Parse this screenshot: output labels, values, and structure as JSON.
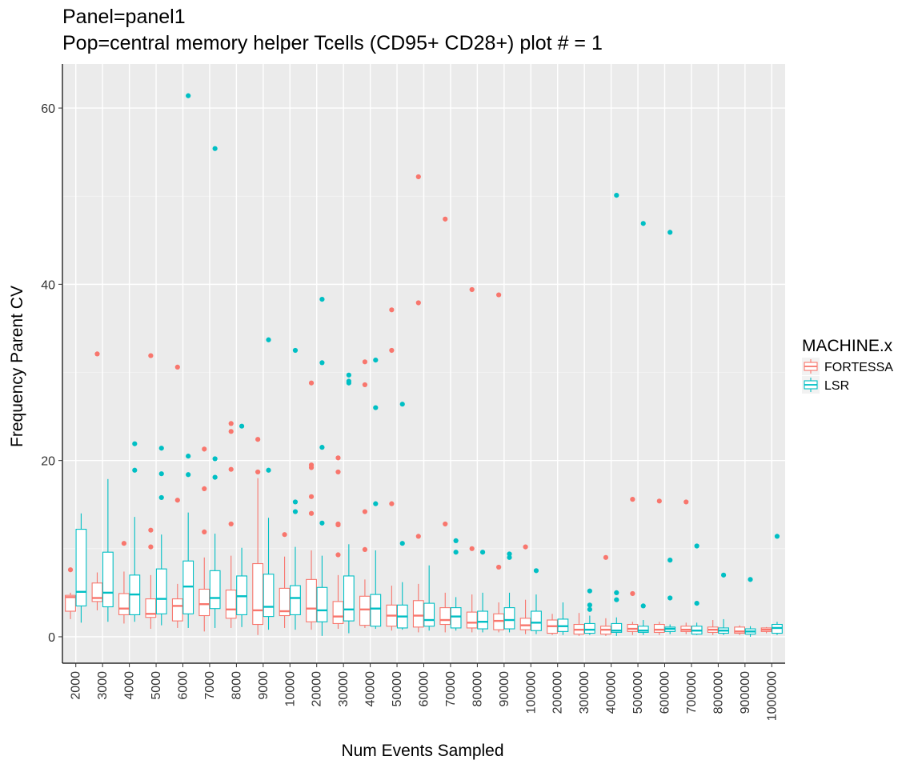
{
  "chart_data": {
    "type": "box",
    "title": "Panel=panel1",
    "subtitle": "Pop=central memory helper Tcells (CD95+ CD28+) plot # = 1",
    "xlabel": "Num Events Sampled",
    "ylabel": "Frequency Parent CV",
    "ylim": [
      -3,
      65
    ],
    "yticks": [
      0,
      20,
      40,
      60
    ],
    "grid": true,
    "legend": {
      "title": "MACHINE.x",
      "position": "right"
    },
    "categories": [
      "2000",
      "3000",
      "4000",
      "5000",
      "6000",
      "7000",
      "8000",
      "9000",
      "10000",
      "20000",
      "30000",
      "40000",
      "50000",
      "60000",
      "70000",
      "80000",
      "90000",
      "100000",
      "200000",
      "300000",
      "400000",
      "500000",
      "600000",
      "700000",
      "800000",
      "900000",
      "1000000"
    ],
    "series": [
      {
        "name": "FORTESSA",
        "color": "#F8766D",
        "boxes": [
          {
            "lo": 2.0,
            "q1": 2.9,
            "med": 4.5,
            "q3": 4.7,
            "hi": 5.0,
            "outliers": [
              7.6
            ]
          },
          {
            "lo": 3.0,
            "q1": 4.0,
            "med": 4.4,
            "q3": 6.1,
            "hi": 7.3,
            "outliers": [
              32.1
            ]
          },
          {
            "lo": 1.5,
            "q1": 2.5,
            "med": 3.2,
            "q3": 4.9,
            "hi": 7.4,
            "outliers": [
              10.6
            ]
          },
          {
            "lo": 0.9,
            "q1": 2.2,
            "med": 2.6,
            "q3": 4.3,
            "hi": 7.0,
            "outliers": [
              10.2,
              12.1,
              31.9
            ]
          },
          {
            "lo": 1.0,
            "q1": 1.8,
            "med": 3.5,
            "q3": 4.3,
            "hi": 6.0,
            "outliers": [
              15.5,
              30.6
            ]
          },
          {
            "lo": 0.6,
            "q1": 2.4,
            "med": 3.7,
            "q3": 5.4,
            "hi": 9.0,
            "outliers": [
              11.9,
              16.8,
              21.3
            ]
          },
          {
            "lo": 1.0,
            "q1": 2.1,
            "med": 3.1,
            "q3": 5.3,
            "hi": 9.2,
            "outliers": [
              12.8,
              19.0,
              23.3,
              24.2
            ]
          },
          {
            "lo": 0.2,
            "q1": 1.4,
            "med": 3.0,
            "q3": 8.3,
            "hi": 18.0,
            "outliers": [
              18.7,
              22.4
            ]
          },
          {
            "lo": 1.0,
            "q1": 2.4,
            "med": 2.9,
            "q3": 5.5,
            "hi": 9.1,
            "outliers": [
              11.6
            ]
          },
          {
            "lo": 0.8,
            "q1": 1.7,
            "med": 3.2,
            "q3": 6.5,
            "hi": 9.8,
            "outliers": [
              14.0,
              15.9,
              19.2,
              19.5,
              28.8
            ]
          },
          {
            "lo": 0.9,
            "q1": 1.5,
            "med": 2.3,
            "q3": 4.0,
            "hi": 7.0,
            "outliers": [
              9.3,
              12.7,
              12.8,
              18.7,
              20.3
            ]
          },
          {
            "lo": 1.0,
            "q1": 1.3,
            "med": 3.1,
            "q3": 4.6,
            "hi": 6.5,
            "outliers": [
              9.9,
              14.2,
              28.6,
              31.2
            ]
          },
          {
            "lo": 0.7,
            "q1": 1.2,
            "med": 2.4,
            "q3": 3.6,
            "hi": 5.8,
            "outliers": [
              15.1,
              32.5,
              37.1
            ]
          },
          {
            "lo": 0.5,
            "q1": 1.1,
            "med": 2.4,
            "q3": 4.1,
            "hi": 6.0,
            "outliers": [
              11.4,
              37.9,
              52.2
            ]
          },
          {
            "lo": 0.5,
            "q1": 1.4,
            "med": 1.9,
            "q3": 3.3,
            "hi": 5.0,
            "outliers": [
              12.8,
              47.4
            ]
          },
          {
            "lo": 0.5,
            "q1": 1.0,
            "med": 1.6,
            "q3": 2.8,
            "hi": 4.8,
            "outliers": [
              10.0,
              39.4
            ]
          },
          {
            "lo": 0.5,
            "q1": 0.8,
            "med": 1.8,
            "q3": 2.6,
            "hi": 3.9,
            "outliers": [
              7.9,
              38.8
            ]
          },
          {
            "lo": 0.3,
            "q1": 0.8,
            "med": 1.3,
            "q3": 2.1,
            "hi": 4.2,
            "outliers": [
              10.2
            ]
          },
          {
            "lo": 0.2,
            "q1": 0.4,
            "med": 1.2,
            "q3": 1.9,
            "hi": 2.6,
            "outliers": []
          },
          {
            "lo": 0.1,
            "q1": 0.3,
            "med": 0.8,
            "q3": 1.4,
            "hi": 2.7,
            "outliers": []
          },
          {
            "lo": 0.1,
            "q1": 0.3,
            "med": 0.8,
            "q3": 1.2,
            "hi": 2.1,
            "outliers": [
              9.0
            ]
          },
          {
            "lo": 0.2,
            "q1": 0.6,
            "med": 0.9,
            "q3": 1.4,
            "hi": 1.7,
            "outliers": [
              4.9,
              15.6
            ]
          },
          {
            "lo": 0.2,
            "q1": 0.5,
            "med": 0.8,
            "q3": 1.4,
            "hi": 1.7,
            "outliers": [
              15.4
            ]
          },
          {
            "lo": 0.3,
            "q1": 0.6,
            "med": 0.8,
            "q3": 1.2,
            "hi": 1.6,
            "outliers": [
              15.3
            ]
          },
          {
            "lo": 0.2,
            "q1": 0.5,
            "med": 0.8,
            "q3": 1.1,
            "hi": 1.9,
            "outliers": []
          },
          {
            "lo": 0.2,
            "q1": 0.4,
            "med": 0.6,
            "q3": 1.1,
            "hi": 1.3,
            "outliers": []
          },
          {
            "lo": 0.4,
            "q1": 0.6,
            "med": 0.8,
            "q3": 1.0,
            "hi": 1.1,
            "outliers": []
          }
        ]
      },
      {
        "name": "LSR",
        "color": "#00BFC4",
        "boxes": [
          {
            "lo": 1.6,
            "q1": 3.5,
            "med": 5.1,
            "q3": 12.2,
            "hi": 14.0,
            "outliers": []
          },
          {
            "lo": 1.7,
            "q1": 3.4,
            "med": 5.0,
            "q3": 9.6,
            "hi": 17.9,
            "outliers": []
          },
          {
            "lo": 1.7,
            "q1": 2.5,
            "med": 4.8,
            "q3": 7.0,
            "hi": 13.6,
            "outliers": [
              18.9,
              21.9
            ]
          },
          {
            "lo": 1.3,
            "q1": 2.6,
            "med": 4.3,
            "q3": 7.7,
            "hi": 11.6,
            "outliers": [
              15.8,
              18.5,
              21.4
            ]
          },
          {
            "lo": 1.0,
            "q1": 2.6,
            "med": 5.7,
            "q3": 8.6,
            "hi": 14.1,
            "outliers": [
              18.4,
              20.5,
              61.4
            ]
          },
          {
            "lo": 1.0,
            "q1": 3.2,
            "med": 4.4,
            "q3": 7.5,
            "hi": 11.7,
            "outliers": [
              18.1,
              20.2,
              55.4
            ]
          },
          {
            "lo": 1.1,
            "q1": 2.5,
            "med": 4.6,
            "q3": 6.9,
            "hi": 10.1,
            "outliers": [
              23.9
            ]
          },
          {
            "lo": 0.8,
            "q1": 2.3,
            "med": 3.4,
            "q3": 7.1,
            "hi": 13.5,
            "outliers": [
              18.9,
              33.7
            ]
          },
          {
            "lo": 0.8,
            "q1": 2.5,
            "med": 4.4,
            "q3": 5.8,
            "hi": 10.2,
            "outliers": [
              14.2,
              15.3,
              32.5
            ]
          },
          {
            "lo": 0.1,
            "q1": 1.7,
            "med": 3.0,
            "q3": 5.6,
            "hi": 9.2,
            "outliers": [
              12.9,
              21.5,
              31.1,
              38.3
            ]
          },
          {
            "lo": 0.4,
            "q1": 1.8,
            "med": 3.1,
            "q3": 6.9,
            "hi": 10.5,
            "outliers": [
              28.8,
              29.0,
              29.7
            ]
          },
          {
            "lo": 0.9,
            "q1": 1.2,
            "med": 3.2,
            "q3": 4.8,
            "hi": 9.8,
            "outliers": [
              15.1,
              26.0,
              31.4
            ]
          },
          {
            "lo": 0.8,
            "q1": 1.0,
            "med": 2.3,
            "q3": 3.6,
            "hi": 6.2,
            "outliers": [
              10.6,
              26.4
            ]
          },
          {
            "lo": 0.7,
            "q1": 1.2,
            "med": 1.9,
            "q3": 3.8,
            "hi": 8.1,
            "outliers": []
          },
          {
            "lo": 0.7,
            "q1": 1.0,
            "med": 2.3,
            "q3": 3.3,
            "hi": 4.5,
            "outliers": [
              9.6,
              10.9
            ]
          },
          {
            "lo": 0.5,
            "q1": 0.9,
            "med": 1.7,
            "q3": 2.9,
            "hi": 5.0,
            "outliers": [
              9.6
            ]
          },
          {
            "lo": 0.5,
            "q1": 0.9,
            "med": 1.9,
            "q3": 3.3,
            "hi": 5.0,
            "outliers": [
              9.0,
              9.4
            ]
          },
          {
            "lo": 0.3,
            "q1": 0.7,
            "med": 1.6,
            "q3": 2.9,
            "hi": 4.8,
            "outliers": [
              7.5
            ]
          },
          {
            "lo": 0.2,
            "q1": 0.6,
            "med": 1.2,
            "q3": 2.0,
            "hi": 3.9,
            "outliers": []
          },
          {
            "lo": 0.2,
            "q1": 0.4,
            "med": 0.8,
            "q3": 1.5,
            "hi": 2.4,
            "outliers": [
              3.1,
              3.6,
              5.2
            ]
          },
          {
            "lo": 0.1,
            "q1": 0.5,
            "med": 0.7,
            "q3": 1.5,
            "hi": 2.2,
            "outliers": [
              4.2,
              5.0,
              50.1
            ]
          },
          {
            "lo": 0.2,
            "q1": 0.5,
            "med": 0.7,
            "q3": 1.2,
            "hi": 1.9,
            "outliers": [
              3.5,
              46.9
            ]
          },
          {
            "lo": 0.3,
            "q1": 0.6,
            "med": 0.9,
            "q3": 1.1,
            "hi": 1.4,
            "outliers": [
              4.4,
              8.7,
              45.9
            ]
          },
          {
            "lo": 0.2,
            "q1": 0.3,
            "med": 0.7,
            "q3": 1.2,
            "hi": 1.6,
            "outliers": [
              3.8,
              10.3
            ]
          },
          {
            "lo": 0.2,
            "q1": 0.4,
            "med": 0.7,
            "q3": 1.0,
            "hi": 2.0,
            "outliers": [
              7.0
            ]
          },
          {
            "lo": 0.0,
            "q1": 0.3,
            "med": 0.6,
            "q3": 0.9,
            "hi": 1.2,
            "outliers": [
              6.5
            ]
          },
          {
            "lo": 0.2,
            "q1": 0.4,
            "med": 1.0,
            "q3": 1.4,
            "hi": 1.7,
            "outliers": [
              11.4
            ]
          }
        ]
      }
    ]
  }
}
